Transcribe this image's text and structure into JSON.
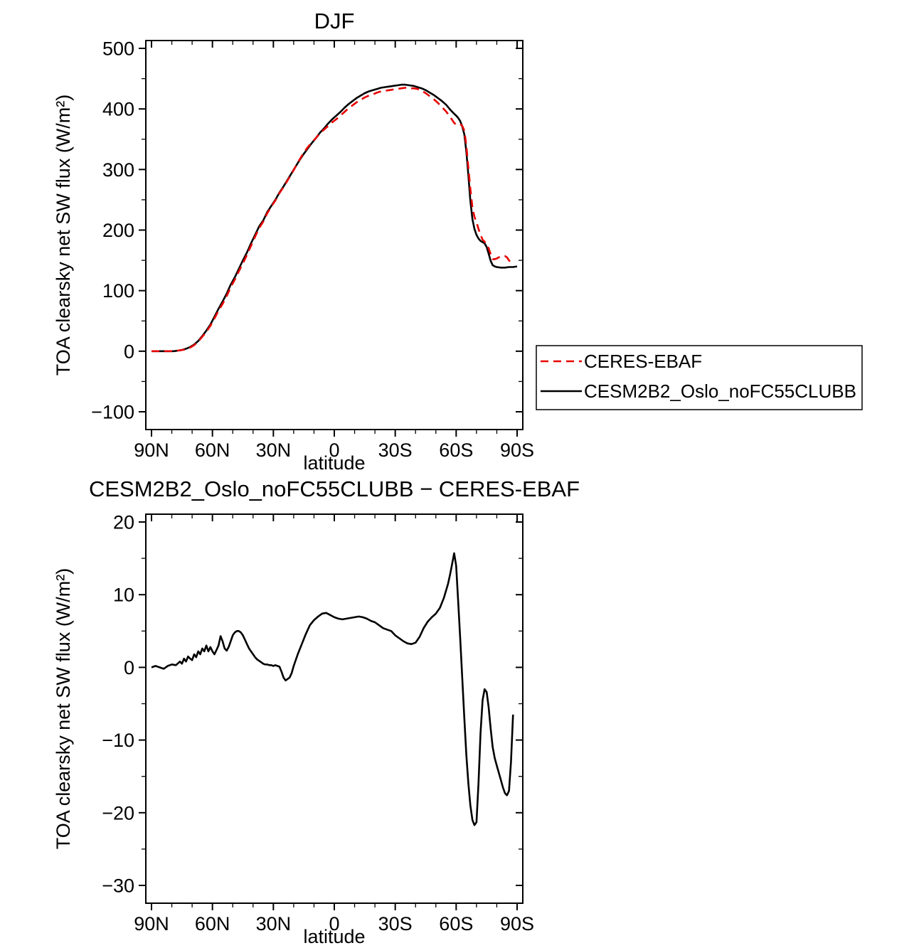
{
  "page": {
    "background": "#ffffff"
  },
  "chart_data": [
    {
      "id": "top",
      "type": "line",
      "title": "DJF",
      "xlabel": "latitude",
      "ylabel": "TOA clearsky net SW flux (W/m²)",
      "xlim": [
        90,
        -90
      ],
      "ylim": [
        -100,
        500
      ],
      "grid": false,
      "xticks": {
        "values": [
          90,
          60,
          30,
          0,
          -30,
          -60,
          -90
        ],
        "labels": [
          "90N",
          "60N",
          "30N",
          "0",
          "30S",
          "60S",
          "90S"
        ],
        "minor_step": 10
      },
      "yticks": {
        "values": [
          -100,
          0,
          100,
          200,
          300,
          400,
          500
        ],
        "labels": [
          "−100",
          "0",
          "100",
          "200",
          "300",
          "400",
          "500"
        ],
        "minor_step": 50
      },
      "legend": {
        "show": true,
        "position": "outside-right-bottom"
      },
      "series": [
        {
          "name": "CERES-EBAF",
          "color": "#e60000",
          "dash": true,
          "x": [
            90,
            86,
            82,
            79,
            77,
            75,
            73,
            71,
            69,
            67,
            65,
            63,
            61,
            59,
            57,
            55,
            53,
            51,
            49,
            47,
            45,
            43,
            41,
            39,
            37,
            35,
            33,
            31,
            29,
            27,
            25,
            23,
            21,
            19,
            17,
            15,
            13,
            11,
            9,
            7,
            5,
            3,
            1,
            -1,
            -3,
            -5,
            -7,
            -9,
            -11,
            -13,
            -15,
            -17,
            -19,
            -21,
            -23,
            -25,
            -27,
            -29,
            -31,
            -33,
            -35,
            -37,
            -39,
            -41,
            -43,
            -45,
            -47,
            -49,
            -51,
            -53,
            -55,
            -57,
            -59,
            -60,
            -61,
            -62,
            -63,
            -64,
            -65,
            -66,
            -67,
            -68,
            -69,
            -70,
            -71,
            -72,
            -73,
            -74,
            -75,
            -76,
            -77,
            -78,
            -79,
            -80,
            -81,
            -82,
            -83,
            -84,
            -85,
            -86,
            -87
          ],
          "y": [
            0,
            0,
            0,
            0,
            1,
            2,
            3,
            6,
            10,
            16,
            24,
            32,
            42,
            54,
            67,
            78,
            91,
            106,
            118,
            132,
            145,
            159,
            174,
            189,
            203,
            214,
            228,
            239,
            249,
            261,
            271,
            282,
            293,
            305,
            317,
            328,
            337,
            345,
            352,
            360,
            366,
            372,
            378,
            383,
            389,
            395,
            401,
            406,
            411,
            415,
            419,
            422,
            424,
            427,
            429,
            430,
            431,
            432,
            433,
            434,
            435,
            434,
            434,
            433,
            430,
            426,
            421,
            416,
            410,
            403,
            396,
            387,
            377,
            374,
            374,
            375,
            372,
            364,
            340,
            303,
            268,
            237,
            222,
            213,
            202,
            192,
            184,
            181,
            175,
            170,
            160,
            152,
            152,
            153,
            155,
            156,
            157,
            157,
            155,
            150,
            146
          ]
        },
        {
          "name": "CESM2B2_Oslo_noFC55CLUBB",
          "color": "#000000",
          "dash": false,
          "x": [
            90,
            86,
            82,
            79,
            77,
            75,
            73,
            71,
            69,
            67,
            65,
            63,
            61,
            59,
            57,
            55,
            53,
            51,
            49,
            47,
            45,
            43,
            41,
            39,
            37,
            35,
            33,
            31,
            29,
            27,
            25,
            23,
            21,
            19,
            17,
            15,
            13,
            11,
            9,
            7,
            5,
            3,
            1,
            -1,
            -3,
            -5,
            -7,
            -9,
            -11,
            -13,
            -15,
            -17,
            -19,
            -21,
            -23,
            -25,
            -27,
            -29,
            -31,
            -33,
            -35,
            -37,
            -39,
            -41,
            -43,
            -45,
            -47,
            -49,
            -51,
            -53,
            -55,
            -57,
            -59,
            -60,
            -61,
            -62,
            -63,
            -64,
            -65,
            -66,
            -67,
            -68,
            -69,
            -70,
            -71,
            -72,
            -73,
            -74,
            -75,
            -76,
            -77,
            -78,
            -79,
            -80,
            -82,
            -84,
            -86,
            -88,
            -90
          ],
          "y": [
            0,
            0,
            0,
            0,
            1,
            2,
            4,
            7,
            11,
            17,
            25,
            34,
            44,
            57,
            70,
            82,
            95,
            110,
            122,
            136,
            150,
            163,
            178,
            192,
            206,
            216,
            230,
            240,
            250,
            262,
            272,
            283,
            294,
            305,
            316,
            326,
            335,
            344,
            352,
            361,
            368,
            376,
            383,
            389,
            395,
            402,
            408,
            413,
            418,
            422,
            426,
            429,
            431,
            433,
            435,
            436,
            437,
            438,
            439,
            440,
            440,
            439,
            438,
            436,
            434,
            431,
            427,
            423,
            418,
            413,
            407,
            399,
            392,
            389,
            385,
            380,
            371,
            358,
            330,
            290,
            248,
            218,
            202,
            192,
            186,
            182,
            180,
            178,
            172,
            161,
            149,
            142,
            140,
            139,
            138,
            138,
            139,
            139,
            140
          ]
        }
      ]
    },
    {
      "id": "bottom",
      "type": "line",
      "title": "CESM2B2_Oslo_noFC55CLUBB − CERES-EBAF",
      "xlabel": "latitude",
      "ylabel": "TOA clearsky net SW flux (W/m²)",
      "xlim": [
        90,
        -90
      ],
      "ylim": [
        -30,
        20
      ],
      "grid": false,
      "xticks": {
        "values": [
          90,
          60,
          30,
          0,
          -30,
          -60,
          -90
        ],
        "labels": [
          "90N",
          "60N",
          "30N",
          "0",
          "30S",
          "60S",
          "90S"
        ],
        "minor_step": 10
      },
      "yticks": {
        "values": [
          -30,
          -20,
          -10,
          0,
          10,
          20
        ],
        "labels": [
          "−30",
          "−20",
          "−10",
          "0",
          "10",
          "20"
        ],
        "minor_step": 5
      },
      "legend": {
        "show": false,
        "position": ""
      },
      "series": [
        {
          "name": "CESM2B2_Oslo_noFC55CLUBB − CERES-EBAF",
          "color": "#000000",
          "dash": false,
          "x": [
            90,
            88,
            86,
            84,
            82,
            80,
            78,
            76,
            75,
            74,
            73,
            72,
            71,
            70,
            69,
            68,
            67,
            66,
            65,
            64,
            63,
            62,
            61,
            60,
            59,
            58,
            57,
            56,
            55,
            54,
            53,
            52,
            51,
            50,
            49,
            48,
            47,
            46,
            45,
            44,
            43,
            42,
            41,
            40,
            39,
            38,
            37,
            36,
            35,
            34,
            33,
            32,
            31,
            30,
            29,
            28,
            27,
            26,
            25,
            24,
            23,
            22,
            21,
            20,
            18,
            16,
            14,
            12,
            10,
            8,
            6,
            4,
            2,
            0,
            -2,
            -4,
            -6,
            -8,
            -10,
            -12,
            -14,
            -16,
            -18,
            -20,
            -22,
            -24,
            -26,
            -28,
            -30,
            -32,
            -34,
            -36,
            -38,
            -40,
            -42,
            -44,
            -46,
            -48,
            -50,
            -52,
            -54,
            -56,
            -57,
            -58,
            -59,
            -60,
            -61,
            -62,
            -63,
            -64,
            -65,
            -66,
            -67,
            -68,
            -69,
            -70,
            -71,
            -72,
            -73,
            -74,
            -75,
            -76,
            -77,
            -78,
            -79,
            -80,
            -81,
            -82,
            -83,
            -84,
            -85,
            -86,
            -87,
            -88
          ],
          "y": [
            0,
            0.2,
            0,
            -0.2,
            0.2,
            0.4,
            0.3,
            0.8,
            0.5,
            1.2,
            0.8,
            1.5,
            1.2,
            1.0,
            1.8,
            1.4,
            2.2,
            1.8,
            2.6,
            2.2,
            3.0,
            2.2,
            2.8,
            2.2,
            1.8,
            2.4,
            3.0,
            4.3,
            3.6,
            2.6,
            2.3,
            2.8,
            3.6,
            4.4,
            4.8,
            5.0,
            5.0,
            4.8,
            4.4,
            3.8,
            3.2,
            2.6,
            2.2,
            1.8,
            1.4,
            1.1,
            0.9,
            0.7,
            0.5,
            0.4,
            0.4,
            0.3,
            0.3,
            0.2,
            0.3,
            0.2,
            0.1,
            -0.6,
            -1.4,
            -1.8,
            -1.6,
            -1.4,
            -0.8,
            0.2,
            1.8,
            3.2,
            4.6,
            5.8,
            6.5,
            7.0,
            7.4,
            7.5,
            7.2,
            6.9,
            6.7,
            6.6,
            6.7,
            6.8,
            6.9,
            7.0,
            6.9,
            6.7,
            6.4,
            6.2,
            5.8,
            5.4,
            5.2,
            5.0,
            4.4,
            4.0,
            3.6,
            3.3,
            3.2,
            3.4,
            4.2,
            5.4,
            6.3,
            6.9,
            7.4,
            8.2,
            9.6,
            11.5,
            12.8,
            14.2,
            15.7,
            14.0,
            9.0,
            4.0,
            -1.5,
            -7.0,
            -12.0,
            -16.0,
            -19.0,
            -21.0,
            -21.7,
            -21.3,
            -16.0,
            -9.0,
            -4.5,
            -3.0,
            -3.4,
            -5.5,
            -8.5,
            -11.0,
            -12.5,
            -13.5,
            -14.5,
            -15.5,
            -16.5,
            -17.3,
            -17.6,
            -17.0,
            -13.0,
            -6.5
          ]
        }
      ]
    }
  ]
}
